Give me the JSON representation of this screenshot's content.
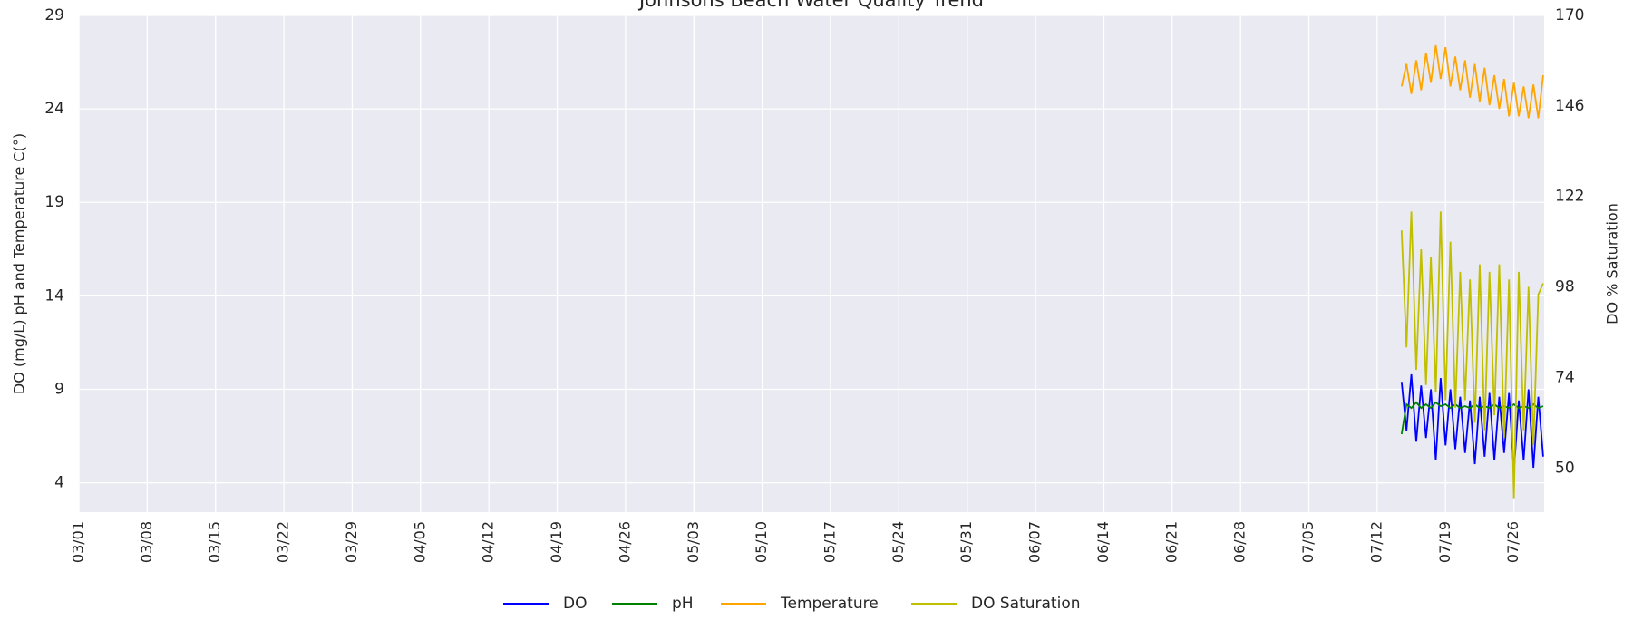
{
  "chart_data": {
    "type": "line",
    "title": "Johnsons Beach Water Quality Trend",
    "ylabel": "DO (mg/L) pH and Temperature C(°)",
    "y2label": "DO % Saturation",
    "x": [
      135.5,
      136,
      136.5,
      137,
      137.5,
      138,
      138.5,
      139,
      139.5,
      140,
      140.5,
      141,
      141.5,
      142,
      142.5,
      143,
      143.5,
      144,
      144.5,
      145,
      145.5,
      146,
      146.5,
      147,
      147.5,
      148,
      148.5,
      149,
      149.5,
      150
    ],
    "series": [
      {
        "name": "DO",
        "color": "#0000ff",
        "values": [
          9.4,
          6.8,
          9.8,
          6.2,
          9.2,
          6.4,
          9.0,
          5.2,
          9.6,
          6.0,
          9.0,
          5.8,
          8.6,
          5.6,
          8.4,
          5.0,
          8.6,
          5.4,
          8.8,
          5.2,
          8.6,
          5.6,
          8.8,
          4.6,
          8.4,
          5.2,
          9.0,
          4.8,
          8.6,
          5.4
        ]
      },
      {
        "name": "pH",
        "color": "#008000",
        "values": [
          6.6,
          8.2,
          8.0,
          8.3,
          8.0,
          8.2,
          8.0,
          8.3,
          8.1,
          8.2,
          8.0,
          8.2,
          8.0,
          8.1,
          8.0,
          8.2,
          8.0,
          8.1,
          8.0,
          8.2,
          8.0,
          8.1,
          8.0,
          8.2,
          8.0,
          8.1,
          8.0,
          8.2,
          8.0,
          8.1
        ]
      },
      {
        "name": "Temperature",
        "color": "#ffa500",
        "values": [
          25.2,
          26.4,
          24.8,
          26.6,
          25.0,
          27.0,
          25.4,
          27.4,
          25.6,
          27.3,
          25.2,
          26.8,
          25.0,
          26.6,
          24.6,
          26.4,
          24.4,
          26.2,
          24.2,
          25.8,
          24.0,
          25.6,
          23.6,
          25.4,
          23.6,
          25.2,
          23.5,
          25.3,
          23.5,
          25.8
        ]
      },
      {
        "name": "DO Saturation",
        "color": "#bfbf00",
        "axis": "y2",
        "values": [
          113,
          82,
          118,
          76,
          108,
          72,
          106,
          70,
          118,
          68,
          110,
          66,
          102,
          68,
          100,
          62,
          104,
          60,
          102,
          64,
          104,
          58,
          100,
          42,
          102,
          60,
          98,
          56,
          96,
          99
        ]
      }
    ],
    "xlim": [
      0,
      150.1
    ],
    "xticks": [
      {
        "value": 0,
        "label": "03/01"
      },
      {
        "value": 7,
        "label": "03/08"
      },
      {
        "value": 14,
        "label": "03/15"
      },
      {
        "value": 21,
        "label": "03/22"
      },
      {
        "value": 28,
        "label": "03/29"
      },
      {
        "value": 35,
        "label": "04/05"
      },
      {
        "value": 42,
        "label": "04/12"
      },
      {
        "value": 49,
        "label": "04/19"
      },
      {
        "value": 56,
        "label": "04/26"
      },
      {
        "value": 63,
        "label": "05/03"
      },
      {
        "value": 70,
        "label": "05/10"
      },
      {
        "value": 77,
        "label": "05/17"
      },
      {
        "value": 84,
        "label": "05/24"
      },
      {
        "value": 91,
        "label": "05/31"
      },
      {
        "value": 98,
        "label": "06/07"
      },
      {
        "value": 105,
        "label": "06/14"
      },
      {
        "value": 112,
        "label": "06/21"
      },
      {
        "value": 119,
        "label": "06/28"
      },
      {
        "value": 126,
        "label": "07/05"
      },
      {
        "value": 133,
        "label": "07/12"
      },
      {
        "value": 140,
        "label": "07/19"
      },
      {
        "value": 147,
        "label": "07/26"
      }
    ],
    "ylim": [
      2.43,
      29
    ],
    "yticks": [
      4,
      9,
      14,
      19,
      24,
      29
    ],
    "y2lim": [
      38.3,
      170
    ],
    "y2ticks": [
      50,
      74,
      98,
      122,
      146,
      170
    ],
    "grid": true,
    "legend": "bottom"
  }
}
